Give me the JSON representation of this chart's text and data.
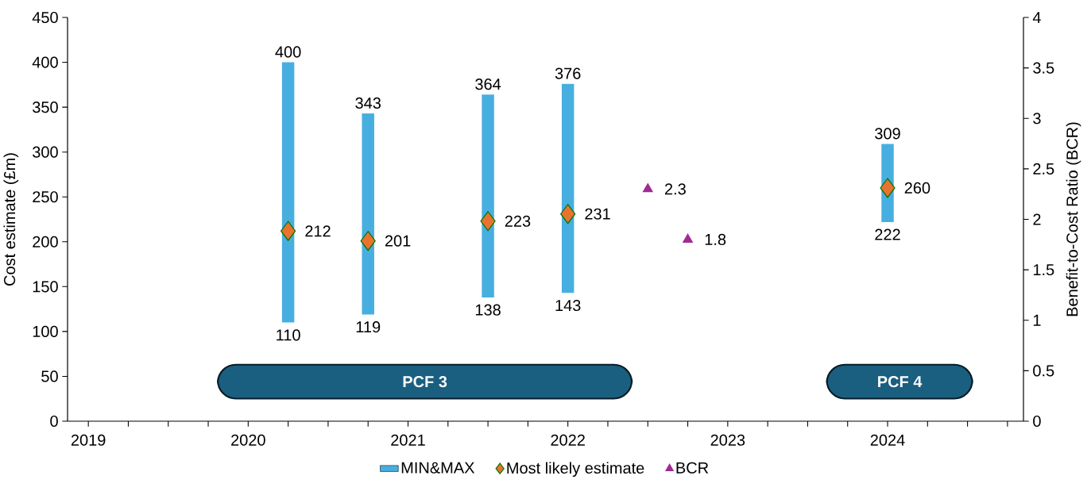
{
  "chart_data": {
    "type": "bar",
    "ylabel": "Cost estimate (£m)",
    "y2label": "Benefit-to-Cost Ratio (BCR)",
    "legend": "bottom",
    "xlim": [
      2018.87,
      2024.85
    ],
    "xticks": [
      2019,
      {
        "value": 2019.25,
        "label": null
      },
      {
        "value": 2019.5,
        "label": null
      },
      {
        "value": 2019.75,
        "label": null
      },
      2020,
      {
        "value": 2020.25,
        "label": null
      },
      {
        "value": 2020.5,
        "label": null
      },
      {
        "value": 2020.75,
        "label": null
      },
      2021,
      {
        "value": 2021.25,
        "label": null
      },
      {
        "value": 2021.5,
        "label": null
      },
      {
        "value": 2021.75,
        "label": null
      },
      2022,
      {
        "value": 2022.25,
        "label": null
      },
      {
        "value": 2022.5,
        "label": null
      },
      {
        "value": 2022.75,
        "label": null
      },
      2023,
      {
        "value": 2023.25,
        "label": null
      },
      {
        "value": 2023.5,
        "label": null
      },
      {
        "value": 2023.75,
        "label": null
      },
      2024,
      {
        "value": 2024.25,
        "label": null
      },
      {
        "value": 2024.5,
        "label": null
      },
      {
        "value": 2024.75,
        "label": null
      }
    ],
    "ylim": [
      0,
      450
    ],
    "yticks": [
      0,
      50,
      100,
      150,
      200,
      250,
      300,
      350,
      400,
      450
    ],
    "y2lim": [
      0,
      4
    ],
    "y2ticks": [
      0,
      0.5,
      1,
      1.5,
      2,
      2.5,
      3,
      3.5,
      4
    ],
    "series": [
      {
        "name": "MIN&MAX",
        "color": "#47afe0",
        "x": [
          2020.25,
          2020.75,
          2021.5,
          2022,
          2024
        ],
        "base": [
          110,
          119,
          138,
          143,
          222
        ],
        "values": [
          290,
          224,
          226,
          233,
          87
        ]
      },
      {
        "name": "Most likely estimate",
        "type": "scatter",
        "marker": "diamond",
        "color": "#e8732f",
        "x": [
          2020.25,
          2020.75,
          2021.5,
          2022,
          2024
        ],
        "values": [
          212,
          201,
          223,
          231,
          260
        ],
        "data_labels": true
      },
      {
        "name": "BCR",
        "type": "scatter",
        "marker": "triangle",
        "axis": "y2",
        "color": "#a02b93",
        "x": [
          2022.5,
          2022.75
        ],
        "values": [
          2.3,
          1.8
        ],
        "data_labels": true
      }
    ],
    "bands": [
      {
        "axis": "x",
        "from": 2019.81,
        "to": 2022.4,
        "label": "PCF 3",
        "color": "#1a5e80"
      },
      {
        "axis": "x",
        "from": 2023.62,
        "to": 2024.53,
        "label": "PCF 4",
        "color": "#1a5e80"
      }
    ],
    "annotations": [
      {
        "text": "400",
        "x": 2020.25,
        "y": 400
      },
      {
        "text": "110",
        "x": 2020.25,
        "y": 110
      },
      {
        "text": "343",
        "x": 2020.75,
        "y": 343
      },
      {
        "text": "119",
        "x": 2020.75,
        "y": 119
      },
      {
        "text": "364",
        "x": 2021.5,
        "y": 364
      },
      {
        "text": "138",
        "x": 2021.5,
        "y": 138
      },
      {
        "text": "376",
        "x": 2022,
        "y": 376
      },
      {
        "text": "143",
        "x": 2022,
        "y": 143
      },
      {
        "text": "309",
        "x": 2024,
        "y": 309
      },
      {
        "text": "222",
        "x": 2024,
        "y": 222
      }
    ]
  }
}
